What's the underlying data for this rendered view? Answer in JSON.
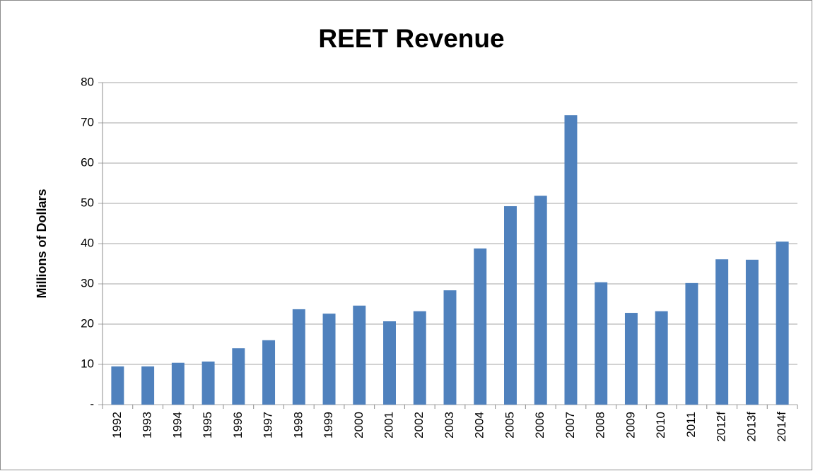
{
  "chart_data": {
    "type": "bar",
    "title": "REET Revenue",
    "y_label": "Millions of Dollars",
    "categories": [
      "1992",
      "1993",
      "1994",
      "1995",
      "1996",
      "1997",
      "1998",
      "1999",
      "2000",
      "2001",
      "2002",
      "2003",
      "2004",
      "2005",
      "2006",
      "2007",
      "2008",
      "2009",
      "2010",
      "2011",
      "2012f",
      "2013f",
      "2014f"
    ],
    "values": [
      9.5,
      9.5,
      10.4,
      10.7,
      14.0,
      16.0,
      23.7,
      22.6,
      24.6,
      20.7,
      23.2,
      28.4,
      38.8,
      49.3,
      51.9,
      71.9,
      30.4,
      22.8,
      23.2,
      30.2,
      36.1,
      36.0,
      40.5
    ],
    "color": "#4f81bd",
    "ylim": [
      0,
      80
    ],
    "yticks": [
      {
        "value": 0,
        "label": "-"
      },
      10,
      20,
      30,
      40,
      50,
      60,
      70,
      80
    ],
    "grid": true
  }
}
